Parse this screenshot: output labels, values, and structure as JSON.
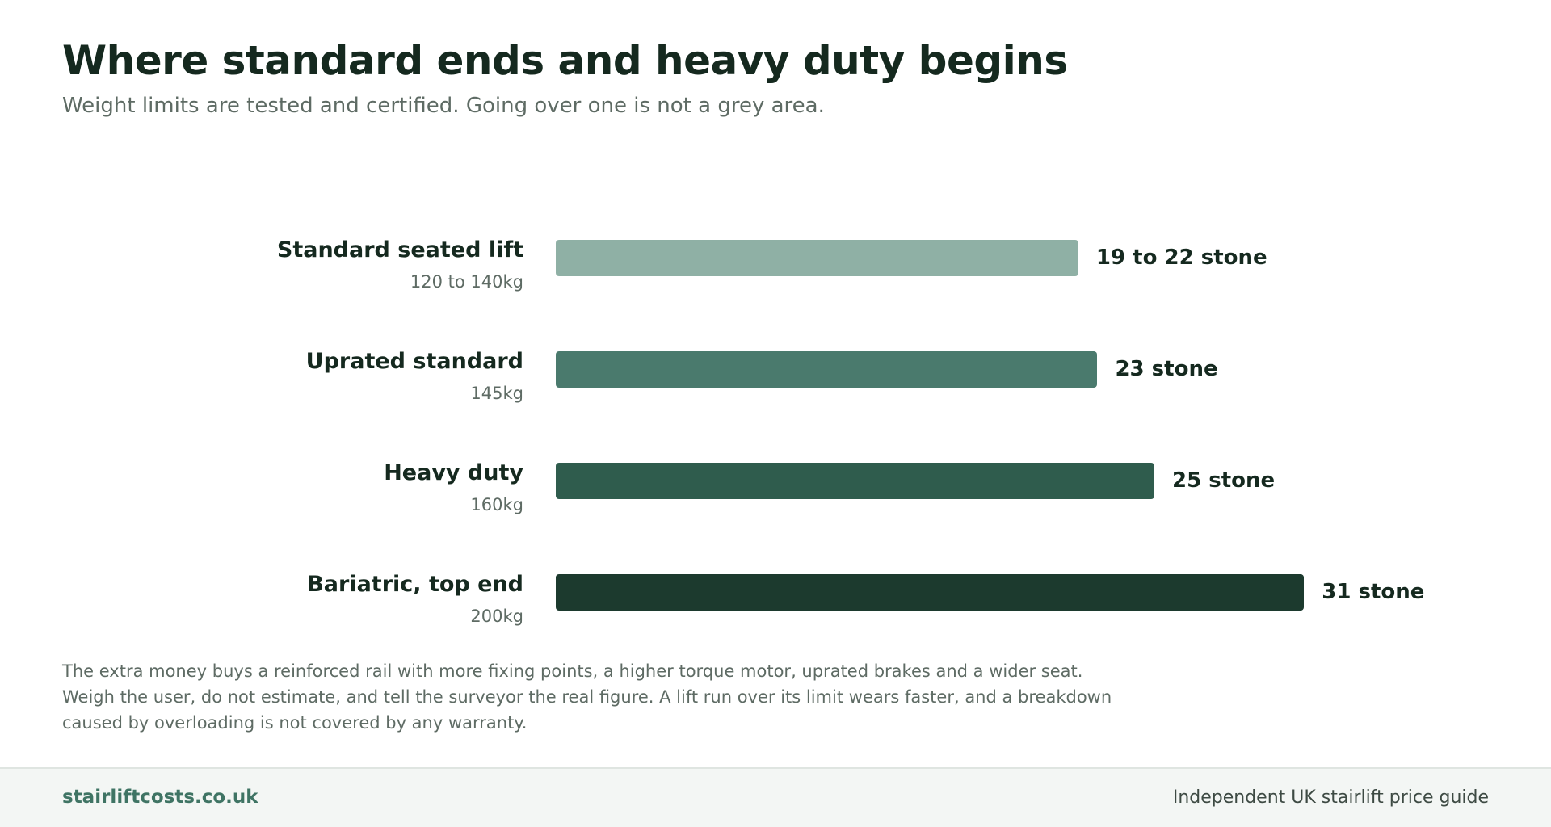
{
  "title": "Where standard ends and heavy duty begins",
  "subtitle": "Weight limits are tested and certified. Going over one is not a grey area.",
  "chart_data": {
    "type": "bar",
    "orientation": "horizontal",
    "xlim": [
      0,
      37
    ],
    "grid": false,
    "categories": [
      {
        "label": "Standard seated lift",
        "sub_label": "120 to 140kg",
        "value": 22,
        "value_label": "19 to 22 stone",
        "color": "#8fb0a5"
      },
      {
        "label": "Uprated standard",
        "sub_label": "145kg",
        "value": 22.8,
        "value_label": "23 stone",
        "color": "#4a7a6d"
      },
      {
        "label": "Heavy duty",
        "sub_label": "160kg",
        "value": 25.2,
        "value_label": "25 stone",
        "color": "#2f5c4d"
      },
      {
        "label": "Bariatric, top end",
        "sub_label": "200kg",
        "value": 31.5,
        "value_label": "31 stone",
        "color": "#1c3a2e"
      }
    ]
  },
  "note": "The extra money buys a reinforced rail with more fixing points, a higher torque motor, uprated brakes and a wider seat. Weigh the user, do not estimate, and tell the surveyor the real figure. A lift run over its limit wears faster, and a breakdown caused by overloading is not covered by any warranty.",
  "footer": {
    "brand": "stairliftcosts.co.uk",
    "tagline": "Independent UK stairlift price guide"
  }
}
